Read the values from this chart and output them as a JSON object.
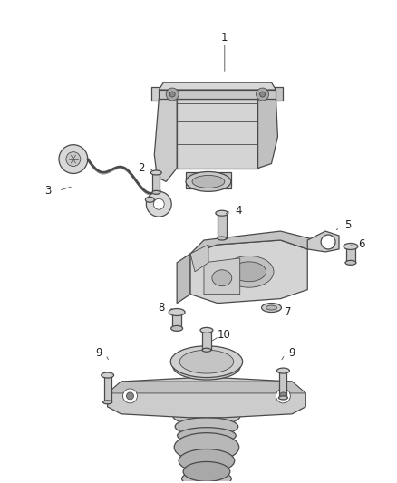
{
  "bg_color": "#ffffff",
  "line_color": "#4a4a4a",
  "fill_light": "#e8e8e8",
  "fill_mid": "#d0d0d0",
  "fill_dark": "#b8b8b8",
  "label_fontsize": 8.5,
  "fig_width": 4.38,
  "fig_height": 5.33,
  "dpi": 100
}
